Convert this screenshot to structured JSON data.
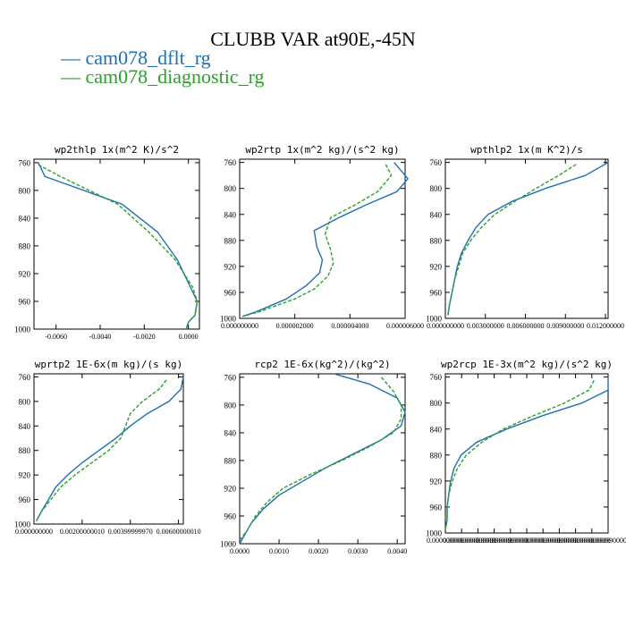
{
  "title": "CLUBB VAR at90E,-45N",
  "legend": [
    {
      "label": "— cam078_dflt_rg",
      "color": "#1f6fb2"
    },
    {
      "label": "— cam078_diagnostic_rg",
      "color": "#2ca02c"
    }
  ],
  "chart_data": [
    {
      "type": "line",
      "title": "wp2thlp  1x(m^2 K)/s^2",
      "xlim": [
        -0.007,
        0.0005
      ],
      "xticks": [
        -0.006,
        -0.004,
        -0.002,
        0.0
      ],
      "xticklabels": [
        "-0.0060",
        "-0.0040",
        "-0.0020",
        "0.0000"
      ],
      "ylim": [
        1000,
        755
      ],
      "yticks": [
        760,
        800,
        840,
        880,
        920,
        960,
        1000
      ],
      "series": [
        {
          "name": "cam078_dflt_rg",
          "color": "#1f6fb2",
          "dash": "",
          "y": [
            760,
            780,
            820,
            860,
            900,
            940,
            960,
            980,
            990,
            1000
          ],
          "x": [
            -0.0068,
            -0.0065,
            -0.003,
            -0.0014,
            -0.0005,
            0.0001,
            0.0004,
            0.0003,
            0.0,
            -0.0001
          ]
        },
        {
          "name": "cam078_diagnostic_rg",
          "color": "#2ca02c",
          "dash": "4,2",
          "y": [
            763,
            780,
            820,
            860,
            900,
            940,
            960,
            980,
            990,
            1000
          ],
          "x": [
            -0.0068,
            -0.0058,
            -0.0032,
            -0.0018,
            -0.0006,
            0.0002,
            0.0004,
            0.0003,
            0.0,
            -0.0001
          ]
        }
      ]
    },
    {
      "type": "line",
      "title": "wp2rtp  1x(m^2 kg)/(s^2 kg)",
      "xlim": [
        0.0,
        6e-06
      ],
      "xticks": [
        0.0,
        2e-06,
        4e-06,
        6e-06
      ],
      "xticklabels": [
        "0.000000000",
        "0.000002000",
        "0.000004000",
        "0.000006000"
      ],
      "ylim": [
        1000,
        755
      ],
      "yticks": [
        760,
        800,
        840,
        880,
        920,
        960,
        1000
      ],
      "series": [
        {
          "name": "cam078_dflt_rg",
          "color": "#1f6fb2",
          "dash": "",
          "y": [
            760,
            785,
            805,
            825,
            845,
            865,
            890,
            910,
            930,
            950,
            970,
            990,
            997
          ],
          "x": [
            5.6e-06,
            6.1e-06,
            5.7e-06,
            4.6e-06,
            3.6e-06,
            2.7e-06,
            2.8e-06,
            3e-06,
            2.9e-06,
            2.4e-06,
            1.7e-06,
            6e-07,
            1e-07
          ]
        },
        {
          "name": "cam078_diagnostic_rg",
          "color": "#2ca02c",
          "dash": "4,2",
          "y": [
            763,
            780,
            805,
            825,
            845,
            870,
            895,
            915,
            935,
            955,
            970,
            990,
            997
          ],
          "x": [
            5.3e-06,
            5.5e-06,
            5e-06,
            4.2e-06,
            3.3e-06,
            3.1e-06,
            3.3e-06,
            3.4e-06,
            3.2e-06,
            2.7e-06,
            2e-06,
            7e-07,
            1e-07
          ]
        }
      ]
    },
    {
      "type": "line",
      "title": "wpthlp2  1x(m K^2)/s",
      "xlim": [
        0.0,
        0.0122
      ],
      "xticks": [
        0.0,
        0.003,
        0.006,
        0.009,
        0.012
      ],
      "xticklabels": [
        "0.000000000",
        "0.003000000",
        "0.006000000",
        "0.009000000",
        "0.012000000"
      ],
      "ylim": [
        1000,
        755
      ],
      "yticks": [
        760,
        800,
        840,
        880,
        920,
        960,
        1000
      ],
      "series": [
        {
          "name": "cam078_dflt_rg",
          "color": "#1f6fb2",
          "dash": "",
          "y": [
            760,
            780,
            800,
            820,
            840,
            860,
            880,
            900,
            920,
            940,
            960,
            980,
            995
          ],
          "x": [
            0.0122,
            0.0105,
            0.0075,
            0.005,
            0.0032,
            0.0023,
            0.0017,
            0.0012,
            0.0009,
            0.0007,
            0.0005,
            0.0003,
            0.0002
          ]
        },
        {
          "name": "cam078_diagnostic_rg",
          "color": "#2ca02c",
          "dash": "4,2",
          "y": [
            763,
            780,
            800,
            820,
            840,
            860,
            880,
            900,
            920,
            940,
            960,
            980,
            995
          ],
          "x": [
            0.0098,
            0.0085,
            0.0068,
            0.0052,
            0.0037,
            0.0027,
            0.0019,
            0.0013,
            0.001,
            0.0007,
            0.0005,
            0.0003,
            0.0002
          ]
        }
      ]
    },
    {
      "type": "line",
      "title": "wprtp2  1E-6x(m kg)/(s kg)",
      "xlim": [
        0.0,
        0.0062
      ],
      "xticks": [
        0.0,
        0.002,
        0.004,
        0.006
      ],
      "xticklabels": [
        "0.000000000",
        "0.00200000010",
        "0.00399999970",
        "0.00600000010"
      ],
      "ylim": [
        1000,
        755
      ],
      "yticks": [
        760,
        800,
        840,
        880,
        920,
        960,
        1000
      ],
      "series": [
        {
          "name": "cam078_dflt_rg",
          "color": "#1f6fb2",
          "dash": "",
          "y": [
            760,
            780,
            800,
            820,
            840,
            860,
            880,
            900,
            920,
            940,
            960,
            980,
            995
          ],
          "x": [
            0.0062,
            0.0061,
            0.0056,
            0.0047,
            0.004,
            0.0034,
            0.0027,
            0.002,
            0.0014,
            0.0009,
            0.0006,
            0.0003,
            0.0001
          ]
        },
        {
          "name": "cam078_diagnostic_rg",
          "color": "#2ca02c",
          "dash": "4,2",
          "y": [
            765,
            780,
            800,
            820,
            840,
            860,
            880,
            900,
            920,
            940,
            960,
            980,
            995
          ],
          "x": [
            0.0055,
            0.0052,
            0.0045,
            0.004,
            0.0038,
            0.0036,
            0.0031,
            0.0024,
            0.0017,
            0.0011,
            0.0007,
            0.0003,
            0.0001
          ]
        }
      ]
    },
    {
      "type": "line",
      "title": "rcp2  1E-6x(kg^2)/(kg^2)",
      "xlim": [
        0.0,
        0.0042
      ],
      "xticks": [
        0.0,
        0.001,
        0.002,
        0.003,
        0.004
      ],
      "xticklabels": [
        "0.0000",
        "0.0010",
        "0.0020",
        "0.0030",
        "0.0040"
      ],
      "ylim": [
        1000,
        755
      ],
      "yticks": [
        760,
        800,
        840,
        880,
        920,
        960,
        1000
      ],
      "series": [
        {
          "name": "cam078_dflt_rg",
          "color": "#1f6fb2",
          "dash": "",
          "y": [
            755,
            770,
            790,
            810,
            830,
            850,
            870,
            890,
            910,
            930,
            950,
            970,
            990,
            1000
          ],
          "x": [
            0.0024,
            0.0033,
            0.004,
            0.0042,
            0.0041,
            0.0036,
            0.0029,
            0.0022,
            0.0016,
            0.001,
            0.0006,
            0.0003,
            0.0001,
            0.0
          ]
        },
        {
          "name": "cam078_diagnostic_rg",
          "color": "#2ca02c",
          "dash": "4,2",
          "y": [
            760,
            780,
            800,
            820,
            840,
            860,
            880,
            900,
            920,
            940,
            960,
            980,
            995
          ],
          "x": [
            0.0036,
            0.0039,
            0.0041,
            0.0041,
            0.0039,
            0.0033,
            0.0026,
            0.0018,
            0.0011,
            0.0007,
            0.0004,
            0.0002,
            0.0
          ]
        }
      ]
    },
    {
      "type": "line",
      "title": "wp2rcp  1E-3x(m^2 kg)/(s^2 kg)",
      "xlim": [
        0.0,
        0.0093
      ],
      "xticks": [
        0.0,
        0.00093,
        0.00186,
        0.00279,
        0.00372,
        0.00465,
        0.00558,
        0.00651,
        0.00744,
        0.00837,
        0.0093
      ],
      "xticklabels": [
        "0.000000000",
        "0.000000000",
        "0.000000000",
        "0.000990000",
        "0.000990000",
        "0.000000000",
        "0.000000000",
        "0.000000000",
        "0.000000000",
        "0.000000000",
        "0.000990000"
      ],
      "ylim": [
        1000,
        755
      ],
      "yticks": [
        760,
        800,
        840,
        880,
        920,
        960,
        1000
      ],
      "series": [
        {
          "name": "cam078_dflt_rg",
          "color": "#1f6fb2",
          "dash": "",
          "y": [
            760,
            780,
            800,
            820,
            840,
            860,
            880,
            900,
            920,
            940,
            960,
            980,
            995
          ],
          "x": [
            0.0093,
            0.0093,
            0.0078,
            0.0055,
            0.0035,
            0.0018,
            0.0009,
            0.0005,
            0.0003,
            0.0002,
            0.0001,
            0.0001,
            0.0
          ]
        },
        {
          "name": "cam078_diagnostic_rg",
          "color": "#2ca02c",
          "dash": "4,2",
          "y": [
            765,
            780,
            800,
            820,
            840,
            860,
            880,
            900,
            920,
            940,
            960,
            980,
            995
          ],
          "x": [
            0.0085,
            0.0082,
            0.0068,
            0.005,
            0.0033,
            0.0021,
            0.0012,
            0.0007,
            0.0004,
            0.0002,
            0.0001,
            0.0001,
            0.0
          ]
        }
      ]
    }
  ]
}
